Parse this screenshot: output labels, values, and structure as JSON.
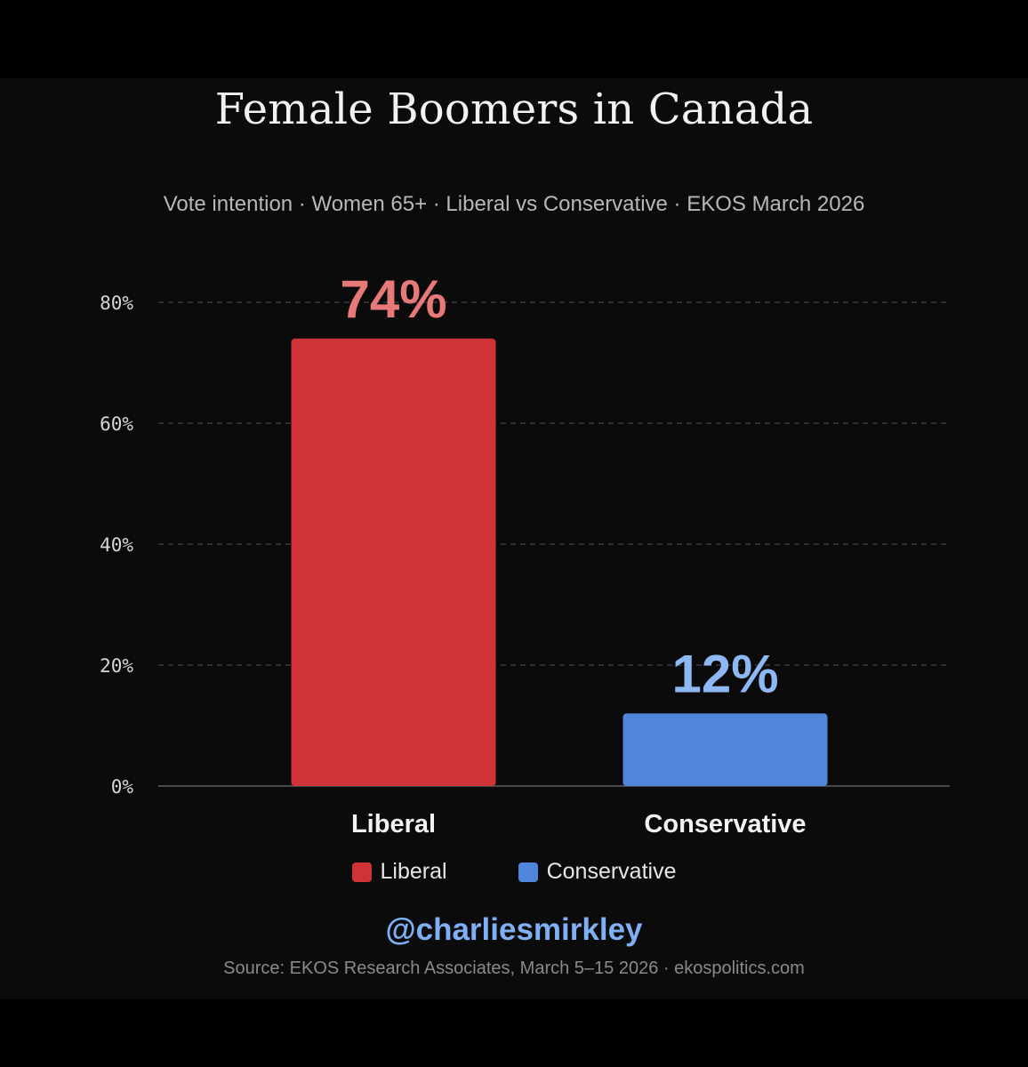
{
  "colors": {
    "liberal": "#cf3337",
    "liberal_label": "#e77a78",
    "conservative": "#4f86db",
    "conservative_label": "#8db8f4",
    "handle": "#7fb0f5",
    "grid": "#3a3a3a",
    "axis": "#4a4a4a"
  },
  "handle": "@charliesmirkley",
  "source": "Source: EKOS Research Associates, March 5–15 2026 · ekospolitics.com",
  "chart_data": {
    "type": "bar",
    "title": "Female Boomers in Canada",
    "subtitle": "Vote intention · Women 65+ · Liberal vs Conservative · EKOS March 2026",
    "categories": [
      "Liberal",
      "Conservative"
    ],
    "values": [
      74,
      12
    ],
    "data_labels": [
      "74%",
      "12%"
    ],
    "yticks": [
      "0%",
      "20%",
      "40%",
      "60%",
      "80%"
    ],
    "ytick_values": [
      0,
      20,
      40,
      60,
      80
    ],
    "ylim": [
      0,
      80
    ],
    "grid": true,
    "legend": [
      "Liberal",
      "Conservative"
    ],
    "legend_position": "bottom"
  }
}
